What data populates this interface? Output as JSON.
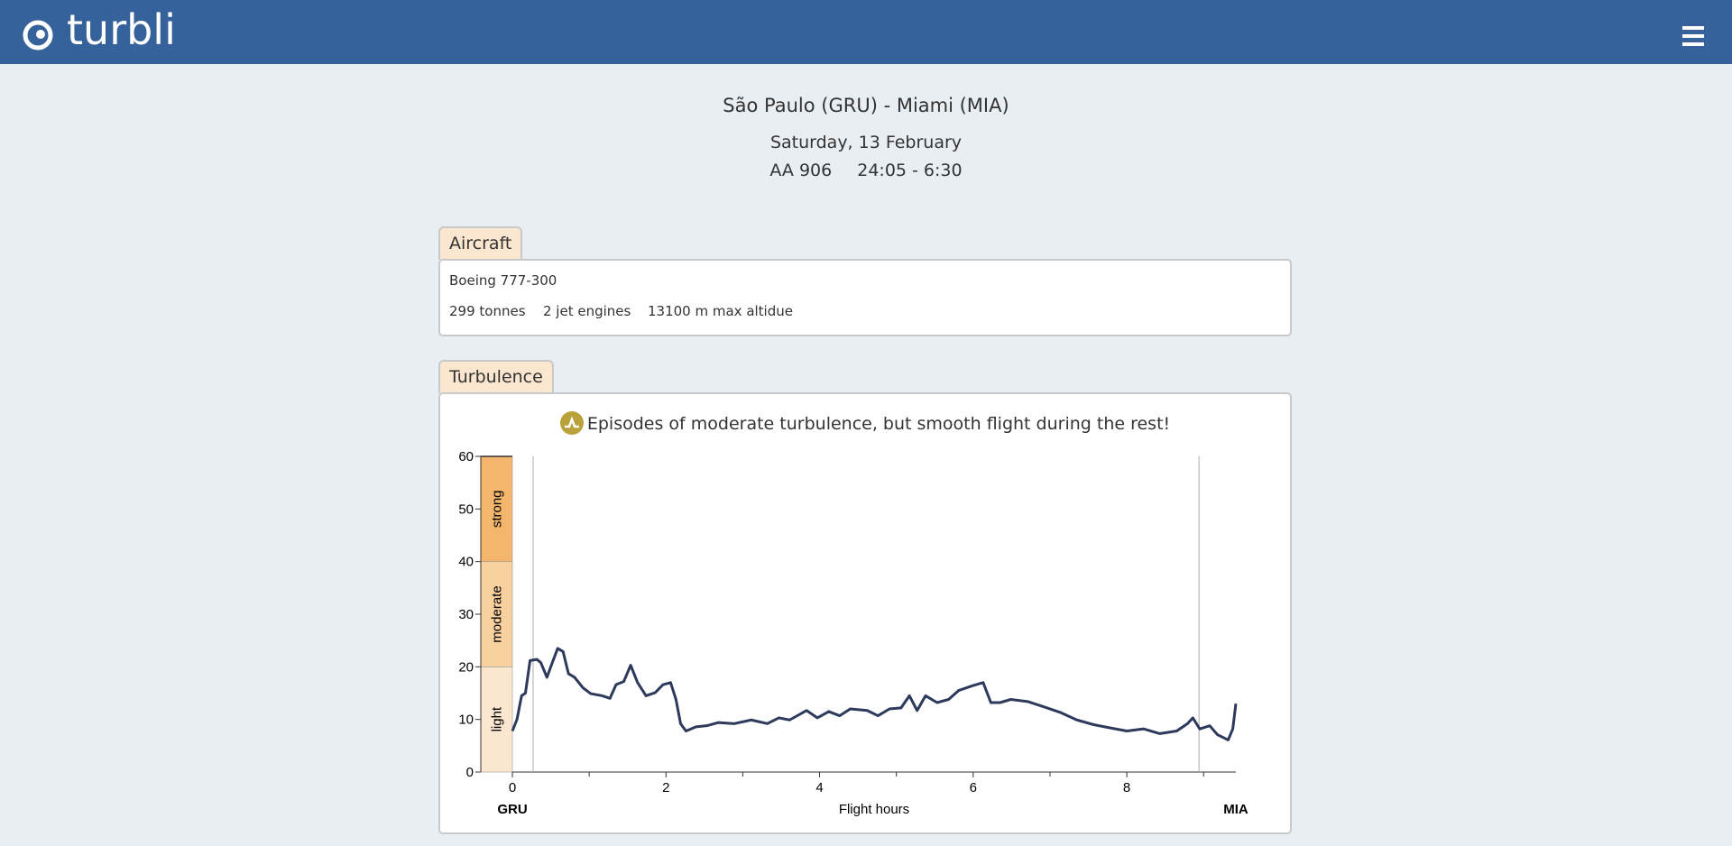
{
  "header": {
    "brand": "turbli"
  },
  "flight": {
    "route": "São Paulo (GRU) - Miami (MIA)",
    "date": "Saturday, 13 February",
    "number": "AA 906",
    "times": "24:05 - 6:30"
  },
  "aircraft": {
    "tab": "Aircraft",
    "model": "Boeing 777-300",
    "specs": [
      "299 tonnes",
      "2 jet engines",
      "13100 m max altidue"
    ]
  },
  "turbulence": {
    "tab": "Turbulence",
    "summary": "Episodes of moderate turbulence, but smooth flight during the rest!"
  },
  "chart_data": {
    "type": "line",
    "x_label": "Flight hours",
    "origin_label": "GRU",
    "destination_label": "MIA",
    "xlim": [
      0,
      9.42
    ],
    "xticks": [
      0,
      2,
      4,
      6,
      8
    ],
    "xminorticks": [
      1,
      3,
      5,
      7,
      9
    ],
    "ylim": [
      0,
      60
    ],
    "yticks": [
      0,
      10,
      20,
      30,
      40,
      50,
      60
    ],
    "reference_lines": [
      0.27,
      8.94
    ],
    "bands": [
      {
        "label": "light",
        "from": 0,
        "to": 20,
        "color": "#fbe6cf"
      },
      {
        "label": "moderate",
        "from": 20,
        "to": 40,
        "color": "#f8d19f"
      },
      {
        "label": "strong",
        "from": 40,
        "to": 60,
        "color": "#f4b66c"
      }
    ],
    "series": [
      {
        "name": "turbulence",
        "color": "#2e3a5c",
        "x": [
          0,
          0.06,
          0.12,
          0.17,
          0.23,
          0.32,
          0.37,
          0.45,
          0.52,
          0.59,
          0.66,
          0.73,
          0.81,
          0.92,
          1.02,
          1.17,
          1.27,
          1.35,
          1.45,
          1.54,
          1.63,
          1.74,
          1.86,
          1.96,
          2.06,
          2.13,
          2.19,
          2.26,
          2.39,
          2.53,
          2.68,
          2.89,
          3.11,
          3.32,
          3.47,
          3.61,
          3.83,
          3.97,
          4.12,
          4.26,
          4.4,
          4.62,
          4.76,
          4.91,
          5.06,
          5.17,
          5.27,
          5.38,
          5.53,
          5.68,
          5.81,
          5.99,
          6.13,
          6.23,
          6.35,
          6.49,
          6.71,
          6.92,
          7.14,
          7.35,
          7.57,
          7.78,
          8.0,
          8.22,
          8.43,
          8.65,
          8.79,
          8.86,
          8.95,
          9.08,
          9.18,
          9.32,
          9.38,
          9.42
        ],
        "values": [
          7.8,
          10,
          14.5,
          15,
          21.2,
          21.4,
          20.8,
          18,
          20.8,
          23.5,
          22.9,
          18.7,
          18,
          16,
          14.9,
          14.5,
          14,
          16.6,
          17.2,
          20.3,
          17,
          14.5,
          15.1,
          16.6,
          17,
          13.8,
          9.2,
          7.8,
          8.6,
          8.8,
          9.4,
          9.2,
          9.9,
          9.2,
          10.3,
          9.9,
          11.7,
          10.3,
          11.5,
          10.7,
          12,
          11.7,
          10.7,
          12,
          12.2,
          14.5,
          11.7,
          14.5,
          13.2,
          13.8,
          15.5,
          16.4,
          17,
          13.2,
          13.2,
          13.8,
          13.4,
          12.4,
          11.3,
          9.9,
          9,
          8.4,
          7.8,
          8.2,
          7.3,
          7.8,
          9.2,
          10.3,
          8.2,
          8.8,
          7.1,
          6.1,
          8.2,
          13
        ]
      }
    ]
  }
}
